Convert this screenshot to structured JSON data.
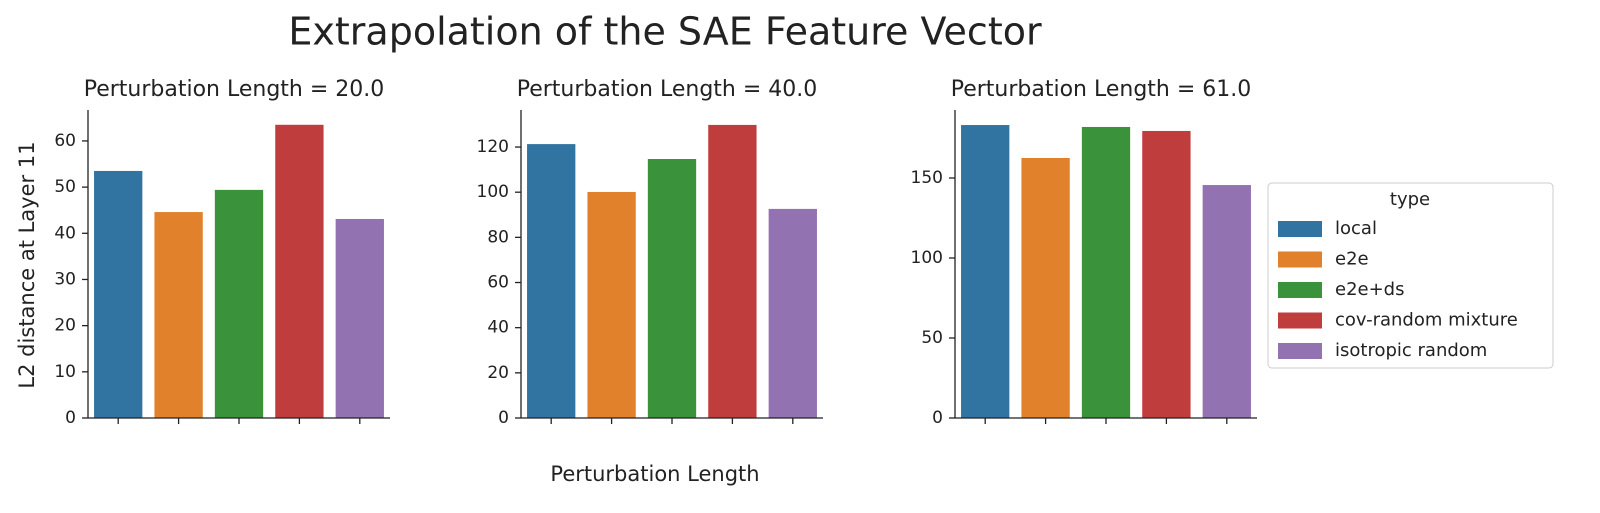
{
  "title": "Extrapolation of the SAE Feature Vector",
  "x_label": "Perturbation Length",
  "y_label": "L2 distance at Layer 11",
  "legend": {
    "title": "type",
    "entries": [
      {
        "name": "local",
        "color": "#3274a1"
      },
      {
        "name": "e2e",
        "color": "#e1812c"
      },
      {
        "name": "e2e+ds",
        "color": "#3a923a"
      },
      {
        "name": "cov-random mixture",
        "color": "#c03d3e"
      },
      {
        "name": "isotropic random",
        "color": "#9372b2"
      }
    ]
  },
  "chart_data": [
    {
      "type": "bar",
      "title": "Perturbation Length = 20.0",
      "categories": [
        null,
        null,
        null,
        null,
        null
      ],
      "values": [
        53.5,
        44.6,
        49.4,
        63.5,
        43.1
      ],
      "ylim": [
        0,
        66.7
      ],
      "yticks": [
        0,
        10,
        20,
        30,
        40,
        50,
        60
      ]
    },
    {
      "type": "bar",
      "title": "Perturbation Length = 40.0",
      "categories": [
        null,
        null,
        null,
        null,
        null
      ],
      "values": [
        121.3,
        100.1,
        114.7,
        129.8,
        92.6
      ],
      "ylim": [
        0,
        136.4
      ],
      "yticks": [
        0,
        20,
        40,
        60,
        80,
        100,
        120
      ]
    },
    {
      "type": "bar",
      "title": "Perturbation Length = 61.0",
      "categories": [
        null,
        null,
        null,
        null,
        null
      ],
      "values": [
        183.1,
        162.5,
        181.9,
        179.4,
        145.6
      ],
      "ylim": [
        0,
        192.5
      ],
      "yticks": [
        0,
        50,
        100,
        150
      ]
    }
  ]
}
